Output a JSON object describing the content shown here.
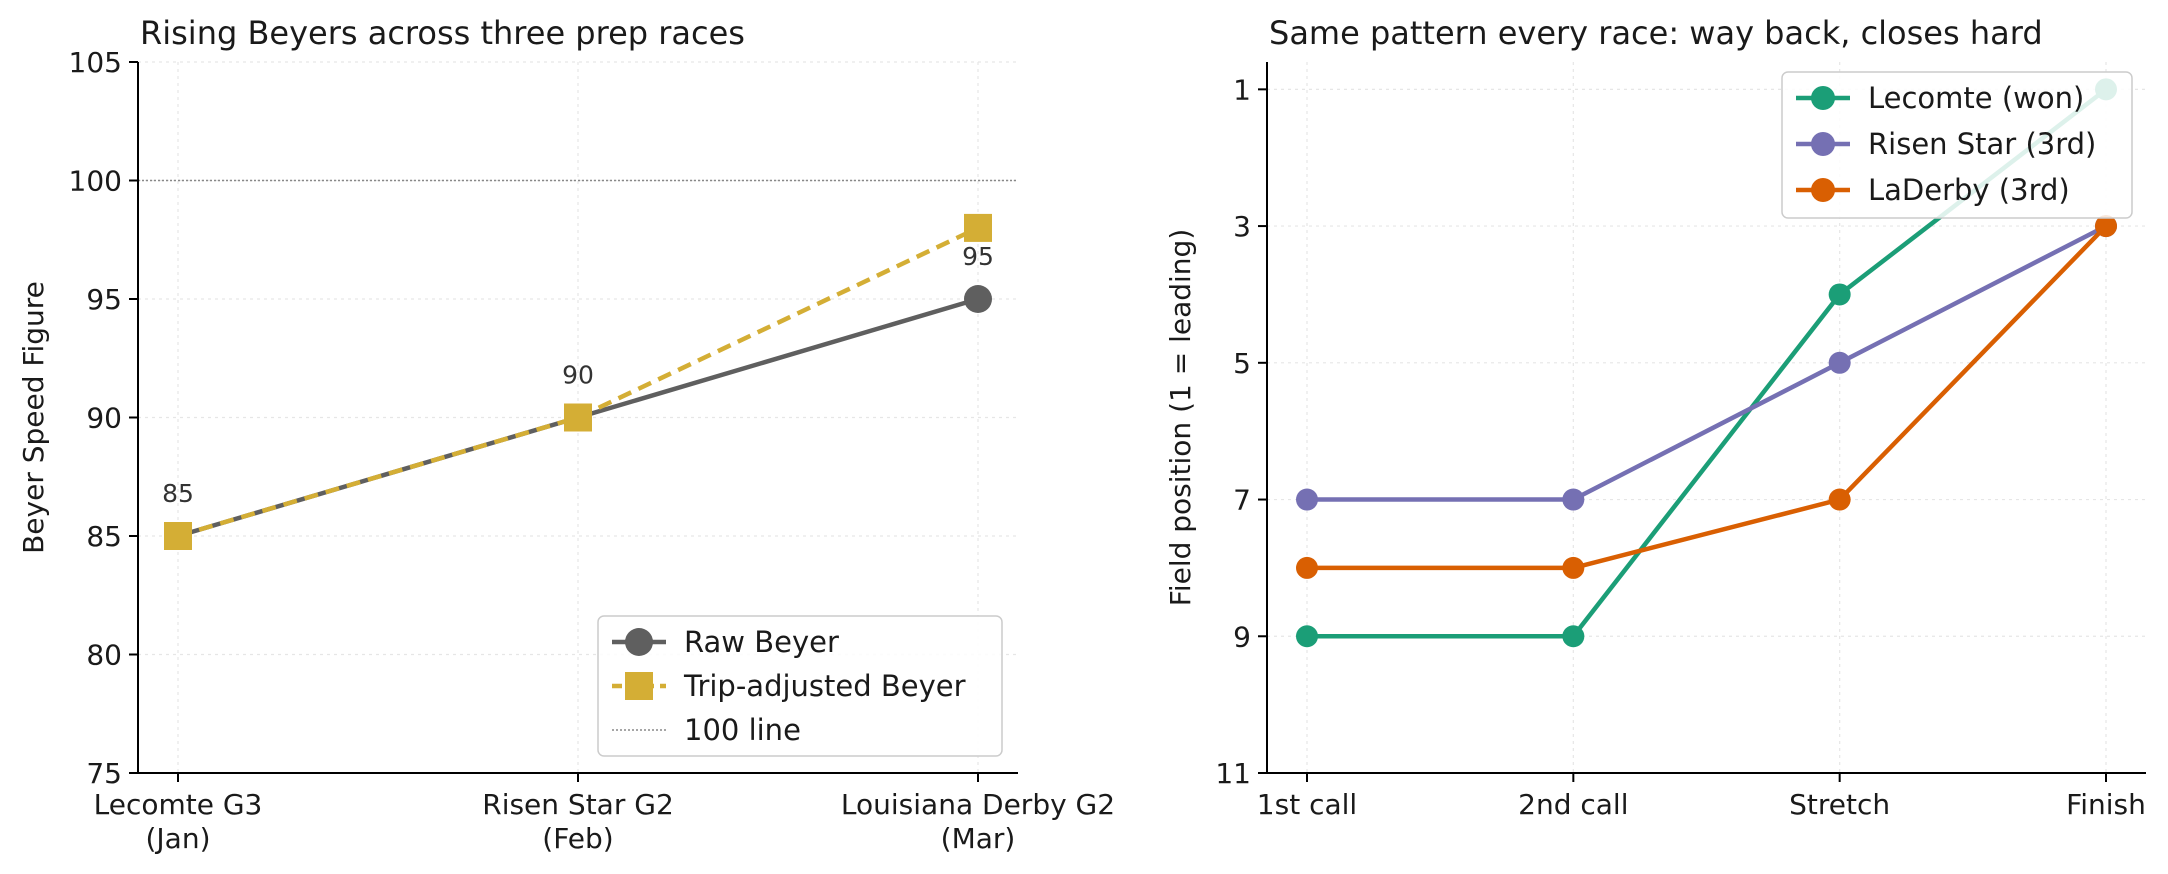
{
  "chart_data": [
    {
      "type": "line",
      "title": "Rising Beyers across three prep races",
      "ylabel": "Beyer Speed Figure",
      "xlabel": "",
      "categories": [
        [
          "Lecomte G3",
          "(Jan)"
        ],
        [
          "Risen Star G2",
          "(Feb)"
        ],
        [
          "Louisiana Derby G2",
          "(Mar)"
        ]
      ],
      "ylim": [
        75,
        105
      ],
      "yticks": [
        75,
        80,
        85,
        90,
        95,
        100,
        105
      ],
      "grid": true,
      "legend_position": "lower-right",
      "reference_line": {
        "y": 100,
        "name": "100 line",
        "color": "#888888"
      },
      "series": [
        {
          "name": "Raw Beyer",
          "values": [
            85,
            90,
            95
          ],
          "color": "#5f5f5f",
          "marker": "circle",
          "dash": false
        },
        {
          "name": "Trip-adjusted Beyer",
          "values": [
            85,
            90,
            98
          ],
          "color": "#d4ae35",
          "marker": "square",
          "dash": true
        }
      ],
      "data_labels": [
        {
          "index": 0,
          "y": 85,
          "text": "85"
        },
        {
          "index": 1,
          "y": 90,
          "text": "90"
        },
        {
          "index": 2,
          "y": 95,
          "text": "95"
        }
      ]
    },
    {
      "type": "line",
      "title": "Same pattern every race: way back, closes hard",
      "ylabel": "Field position (1 = leading)",
      "xlabel": "",
      "categories": [
        [
          "1st call"
        ],
        [
          "2nd call"
        ],
        [
          "Stretch"
        ],
        [
          "Finish"
        ]
      ],
      "ylim": [
        11,
        0.6
      ],
      "yticks": [
        1,
        3,
        5,
        7,
        9,
        11
      ],
      "y_inverted": true,
      "grid": true,
      "legend_position": "upper-right",
      "series": [
        {
          "name": "Lecomte (won)",
          "values": [
            9,
            9,
            4,
            1
          ],
          "color": "#1b9e77",
          "marker": "circle"
        },
        {
          "name": "Risen Star (3rd)",
          "values": [
            7,
            7,
            5,
            3
          ],
          "color": "#7570b3",
          "marker": "circle"
        },
        {
          "name": "LaDerby (3rd)",
          "values": [
            8,
            8,
            7,
            3
          ],
          "color": "#d95f02",
          "marker": "circle"
        }
      ]
    }
  ]
}
